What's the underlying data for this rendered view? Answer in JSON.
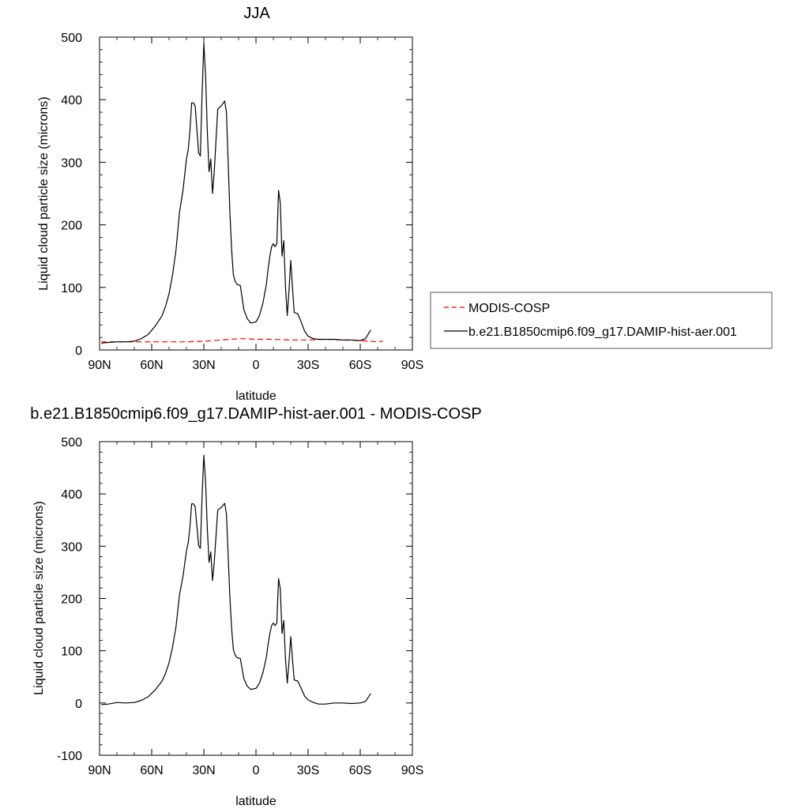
{
  "chart_data": [
    {
      "type": "line",
      "title": "JJA",
      "xlabel": "latitude",
      "ylabel": "Liquid cloud particle size (microns)",
      "xlim": [
        -90,
        90
      ],
      "ylim": [
        0,
        500
      ],
      "xticks": [
        -90,
        -60,
        -30,
        0,
        30,
        60,
        90
      ],
      "xtick_labels": [
        "90N",
        "60N",
        "30N",
        "0",
        "30S",
        "60S",
        "90S"
      ],
      "yticks": [
        0,
        100,
        200,
        300,
        400,
        500
      ],
      "ytick_labels": [
        "0",
        "100",
        "200",
        "300",
        "400",
        "500"
      ],
      "grid": false,
      "legend_position": "right",
      "series": [
        {
          "name": "MODIS-COSP",
          "color": "#ff0000",
          "style": "dashed",
          "x": [
            -89,
            -80,
            -70,
            -60,
            -50,
            -40,
            -30,
            -20,
            -10,
            -7,
            0,
            10,
            20,
            30,
            40,
            50,
            60,
            65,
            70,
            73
          ],
          "y": [
            13,
            13,
            13,
            13,
            13,
            13,
            14,
            16,
            18,
            18,
            17,
            17,
            16,
            16,
            17,
            16,
            15,
            14,
            13,
            14
          ]
        },
        {
          "name": "b.e21.B1850cmip6.f09_g17.DAMIP-hist-aer.001",
          "color": "#000000",
          "style": "solid",
          "x": [
            -89,
            -85,
            -80,
            -75,
            -70,
            -66,
            -62,
            -58,
            -54,
            -52,
            -50,
            -48,
            -46,
            -44,
            -42,
            -40,
            -39,
            -38,
            -37,
            -36,
            -35,
            -33,
            -32,
            -31,
            -30,
            -29,
            -28,
            -27,
            -26,
            -25,
            -24,
            -22,
            -20,
            -18,
            -17,
            -16,
            -15,
            -14,
            -13,
            -12,
            -11,
            -9,
            -7,
            -5,
            -3,
            0,
            2,
            4,
            6,
            7,
            8,
            9,
            10,
            11,
            12,
            13,
            14,
            15,
            16,
            17,
            18,
            19,
            20,
            21,
            22,
            24,
            26,
            28,
            30,
            33,
            36,
            40,
            45,
            50,
            55,
            60,
            63,
            66
          ],
          "y": [
            11,
            12,
            13,
            13,
            14,
            18,
            25,
            38,
            55,
            70,
            90,
            120,
            160,
            220,
            255,
            305,
            320,
            350,
            395,
            395,
            390,
            315,
            310,
            410,
            490,
            440,
            350,
            285,
            305,
            250,
            285,
            385,
            390,
            398,
            380,
            300,
            220,
            160,
            120,
            110,
            105,
            103,
            65,
            50,
            43,
            45,
            55,
            75,
            105,
            130,
            150,
            165,
            170,
            165,
            170,
            255,
            235,
            150,
            175,
            100,
            55,
            95,
            143,
            100,
            60,
            58,
            45,
            30,
            22,
            18,
            17,
            17,
            17,
            16,
            16,
            15,
            18,
            32
          ]
        }
      ]
    },
    {
      "type": "line",
      "title": "b.e21.B1850cmip6.f09_g17.DAMIP-hist-aer.001 - MODIS-COSP",
      "xlabel": "latitude",
      "ylabel": "Liquid cloud particle size (microns)",
      "xlim": [
        -90,
        90
      ],
      "ylim": [
        -100,
        500
      ],
      "xticks": [
        -90,
        -60,
        -30,
        0,
        30,
        60,
        90
      ],
      "xtick_labels": [
        "90N",
        "60N",
        "30N",
        "0",
        "30S",
        "60S",
        "90S"
      ],
      "yticks": [
        -100,
        0,
        100,
        200,
        300,
        400,
        500
      ],
      "ytick_labels": [
        "-100",
        "0",
        "100",
        "200",
        "300",
        "400",
        "500"
      ],
      "grid": false,
      "series": [
        {
          "name": "b.e21.B1850cmip6.f09_g17.DAMIP-hist-aer.001 - MODIS-COSP",
          "color": "#000000",
          "style": "solid",
          "x": [
            -89,
            -85,
            -80,
            -75,
            -70,
            -66,
            -62,
            -58,
            -54,
            -52,
            -50,
            -48,
            -46,
            -44,
            -42,
            -40,
            -39,
            -38,
            -37,
            -36,
            -35,
            -33,
            -32,
            -31,
            -30,
            -29,
            -28,
            -27,
            -26,
            -25,
            -24,
            -22,
            -20,
            -18,
            -17,
            -16,
            -15,
            -14,
            -13,
            -12,
            -11,
            -9,
            -7,
            -5,
            -3,
            0,
            2,
            4,
            6,
            7,
            8,
            9,
            10,
            11,
            12,
            13,
            14,
            15,
            16,
            17,
            18,
            19,
            20,
            21,
            22,
            24,
            26,
            28,
            30,
            33,
            36,
            40,
            45,
            50,
            55,
            60,
            63,
            66
          ],
          "y": [
            -3,
            -2,
            1,
            0,
            1,
            5,
            12,
            25,
            42,
            57,
            77,
            107,
            146,
            207,
            242,
            291,
            306,
            336,
            381,
            381,
            376,
            301,
            296,
            396,
            474,
            424,
            334,
            269,
            289,
            234,
            269,
            369,
            374,
            382,
            362,
            282,
            202,
            142,
            102,
            92,
            87,
            85,
            47,
            32,
            26,
            28,
            38,
            58,
            88,
            113,
            133,
            148,
            153,
            148,
            153,
            238,
            218,
            133,
            158,
            83,
            38,
            78,
            127,
            84,
            44,
            42,
            28,
            13,
            6,
            1,
            -2,
            -2,
            0,
            0,
            -1,
            0,
            3,
            18
          ]
        }
      ]
    }
  ]
}
